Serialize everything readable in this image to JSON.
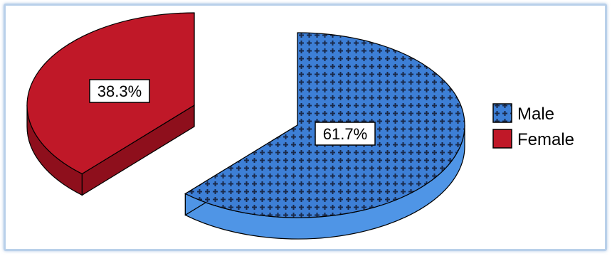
{
  "chart_data": {
    "type": "pie",
    "style": "3d-exploded",
    "title": "",
    "categories": [
      "Male",
      "Female"
    ],
    "values": [
      61.7,
      38.3
    ],
    "value_labels": [
      "61.7%",
      "38.3%"
    ],
    "legend": {
      "placement": "right",
      "entries": [
        "Male",
        "Female"
      ]
    },
    "colors": {
      "Male": "#3d7fd6",
      "Male_pattern": "#1a2a4a",
      "Female": "#c01828",
      "Female_side": "#8e0f1c",
      "Male_side": "#4f95e6"
    }
  }
}
